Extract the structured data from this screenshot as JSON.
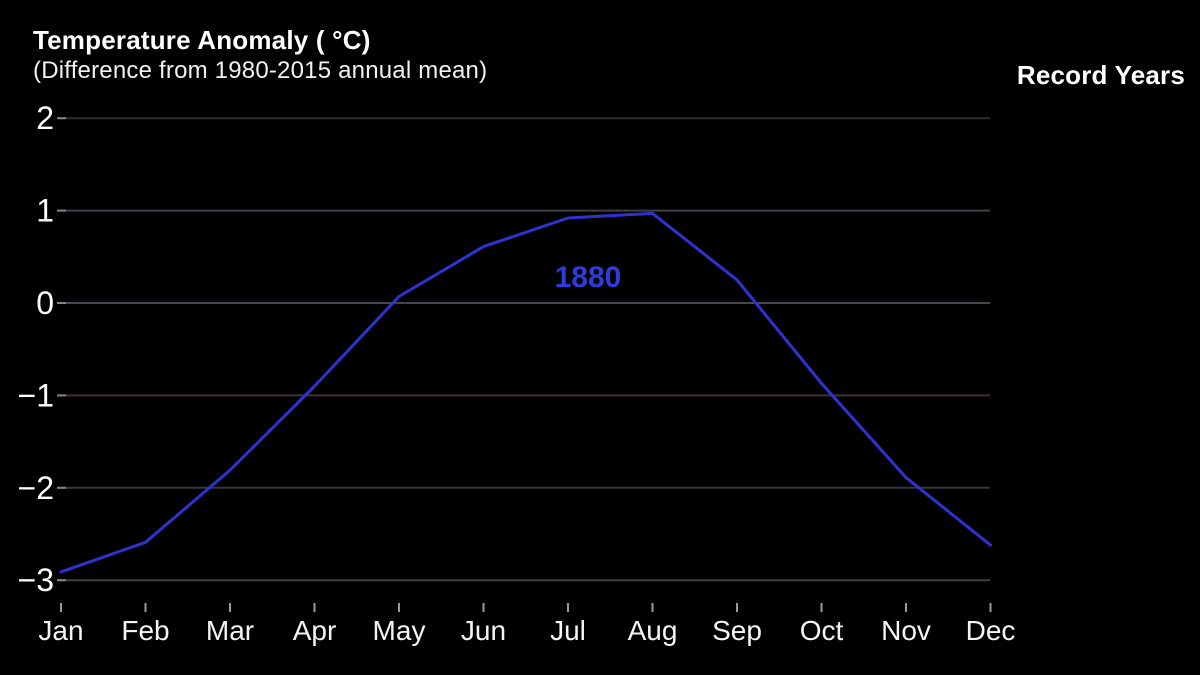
{
  "header": {
    "title": "Temperature Anomaly ( °C)",
    "subtitle": "(Difference from 1980-2015 annual mean)",
    "legend_title": "Record Years"
  },
  "chart_data": {
    "type": "line",
    "title": "Temperature Anomaly ( °C)",
    "subtitle": "(Difference from 1980-2015 annual mean)",
    "legend_title": "Record Years",
    "categories": [
      "Jan",
      "Feb",
      "Mar",
      "Apr",
      "May",
      "Jun",
      "Jul",
      "Aug",
      "Sep",
      "Oct",
      "Nov",
      "Dec"
    ],
    "series": [
      {
        "name": "1880",
        "color": "#2e33cf",
        "label_color": "#2c3dd9",
        "values": [
          -2.91,
          -2.59,
          -1.81,
          -0.9,
          0.07,
          0.61,
          0.92,
          0.97,
          0.25,
          -0.87,
          -1.89,
          -2.62
        ]
      }
    ],
    "xlabel": "",
    "ylabel": "Temperature Anomaly (°C)",
    "yticks": [
      2,
      1,
      0,
      -1,
      -2,
      -3
    ],
    "ytick_labels": [
      "2",
      "1",
      "0",
      "−1",
      "−2",
      "−3"
    ],
    "ylim": [
      -3.4,
      2.3
    ],
    "grid": true,
    "legend_position": "top-right",
    "gridline_colors": [
      "#2f2f37",
      "#404046",
      "#46464c",
      "#443130",
      "#35373f",
      "#404046"
    ]
  },
  "colors": {
    "background": "#000000",
    "text": "#ffffff",
    "month_text": "#f5f5f5",
    "y_tick": "#85858b",
    "x_tick": "#9a9a9a",
    "line_blue": "#2e33cf",
    "label_blue": "#2c3dd9"
  }
}
